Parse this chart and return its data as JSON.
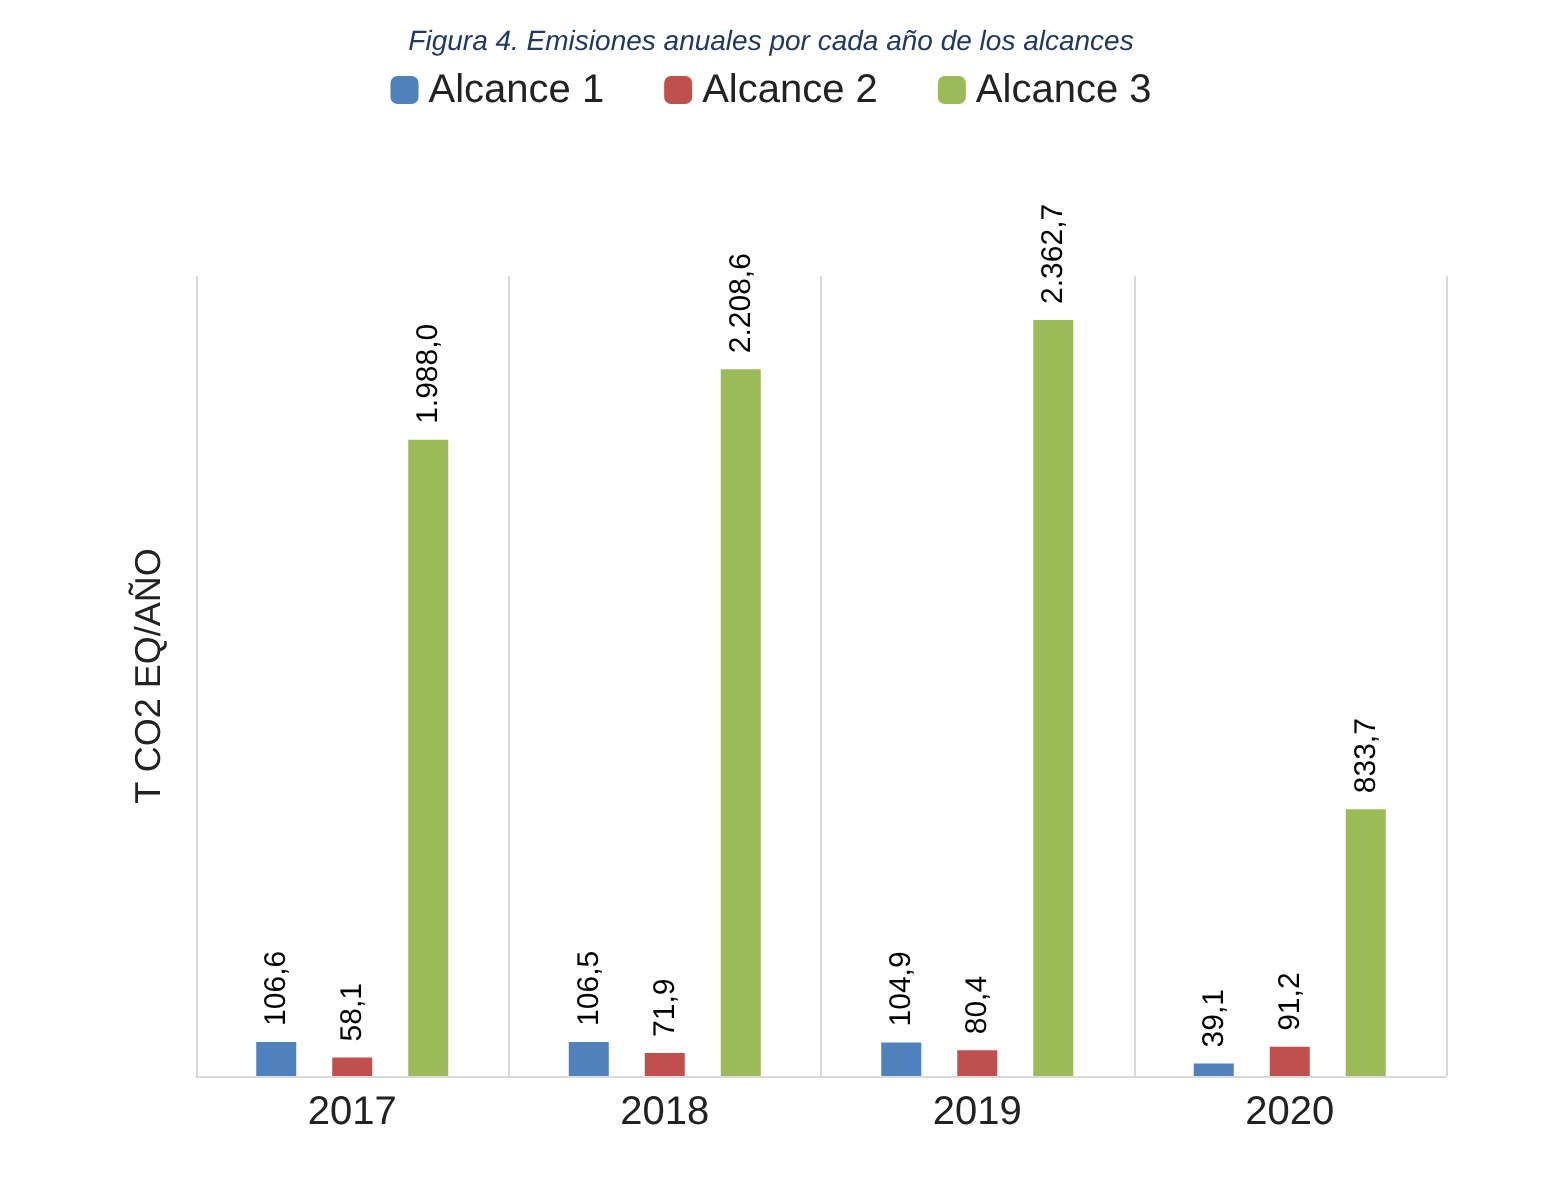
{
  "chart_data": {
    "type": "bar",
    "title": "Figura 4. Emisiones anuales por cada año de los alcances",
    "ylabel": "T CO2 EQ/AÑO",
    "categories": [
      "2017",
      "2018",
      "2019",
      "2020"
    ],
    "series": [
      {
        "name": "Alcance 1",
        "color": "#4f81bd",
        "values": [
          106.6,
          106.5,
          104.9,
          39.1
        ],
        "value_labels": [
          "106,6",
          "106,5",
          "104,9",
          "39,1"
        ]
      },
      {
        "name": "Alcance 2",
        "color": "#c0504d",
        "values": [
          58.1,
          71.9,
          80.4,
          91.2
        ],
        "value_labels": [
          "58,1",
          "71,9",
          "80,4",
          "91,2"
        ]
      },
      {
        "name": "Alcance 3",
        "color": "#9bbb59",
        "values": [
          1988.0,
          2208.6,
          2362.7,
          833.7
        ],
        "value_labels": [
          "1.988,0",
          "2.208,6",
          "2.362,7",
          "833,7"
        ]
      }
    ],
    "ylim": [
      0,
      2500
    ],
    "legend": "top",
    "grid": "x"
  }
}
